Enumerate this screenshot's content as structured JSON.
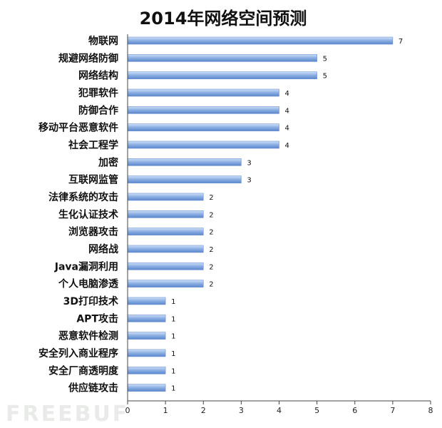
{
  "chart_data": {
    "type": "bar",
    "orientation": "horizontal",
    "title": "2014年网络空间预测",
    "categories": [
      "物联网",
      "规避网络防御",
      "网络结构",
      "犯罪软件",
      "防御合作",
      "移动平台恶意软件",
      "社会工程学",
      "加密",
      "互联网监管",
      "法律系统的攻击",
      "生化认证技术",
      "浏览器攻击",
      "网络战",
      "Java漏洞利用",
      "个人电脑渗透",
      "3D打印技术",
      "APT攻击",
      "恶意软件检测",
      "安全列入商业程序",
      "安全厂商透明度",
      "供应链攻击"
    ],
    "values": [
      7,
      5,
      5,
      4,
      4,
      4,
      4,
      3,
      3,
      2,
      2,
      2,
      2,
      2,
      2,
      1,
      1,
      1,
      1,
      1,
      1
    ],
    "xlim": [
      0,
      8
    ],
    "xticks": [
      0,
      1,
      2,
      3,
      4,
      5,
      6,
      7,
      8
    ],
    "grid": false,
    "bar_color": "#8fb2e4",
    "data_labels": true
  },
  "watermark": "FREEBUF"
}
